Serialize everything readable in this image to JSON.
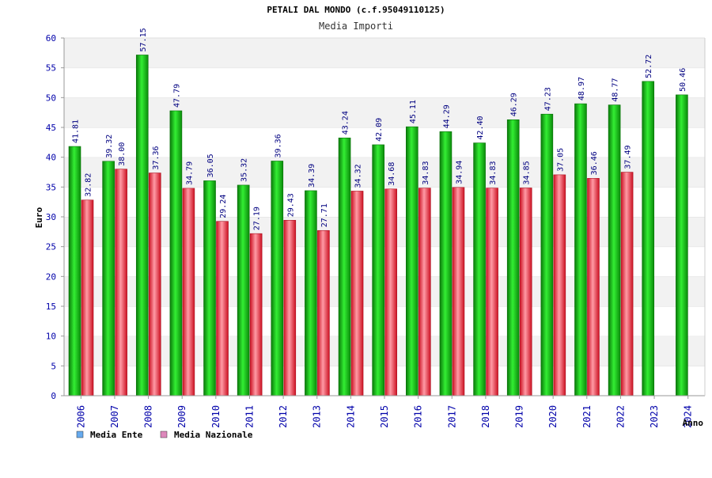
{
  "chart_data": {
    "type": "bar",
    "title": "PETALI DAL MONDO (c.f.95049110125)",
    "subtitle": "Media Importi",
    "ylabel": "Euro",
    "xlabel": "Anno",
    "ylim": [
      0,
      60
    ],
    "yticks": [
      0,
      5,
      10,
      15,
      20,
      25,
      30,
      35,
      40,
      45,
      50,
      55,
      60
    ],
    "grid": "horizontal bands",
    "legend_position": "bottom-left",
    "categories": [
      "2006",
      "2007",
      "2008",
      "2009",
      "2010",
      "2011",
      "2012",
      "2013",
      "2014",
      "2015",
      "2016",
      "2017",
      "2018",
      "2019",
      "2020",
      "2021",
      "2022",
      "2023",
      "2024"
    ],
    "series": [
      {
        "name": "Media Ente",
        "color": "#11bb11",
        "legend_color": "#66aaee",
        "values": [
          41.81,
          39.32,
          57.15,
          47.79,
          36.05,
          35.32,
          39.36,
          34.39,
          43.24,
          42.09,
          45.11,
          44.29,
          42.4,
          46.29,
          47.23,
          48.97,
          48.77,
          52.72,
          50.46
        ],
        "labels": [
          "41.81",
          "39.32",
          "57.15",
          "47.79",
          "36.05",
          "35.32",
          "39.36",
          "34.39",
          "43.24",
          "42.09",
          "45.11",
          "44.29",
          "42.40",
          "46.29",
          "47.23",
          "48.97",
          "48.77",
          "52.72",
          "50.46"
        ]
      },
      {
        "name": "Media Nazionale",
        "color": "#ee3344",
        "legend_color": "#dd88bb",
        "values": [
          32.82,
          38.0,
          37.36,
          34.79,
          29.24,
          27.19,
          29.43,
          27.71,
          34.32,
          34.68,
          34.83,
          34.94,
          34.83,
          34.85,
          37.05,
          36.46,
          37.49,
          null,
          null
        ],
        "labels": [
          "32.82",
          "38.00",
          "37.36",
          "34.79",
          "29.24",
          "27.19",
          "29.43",
          "27.71",
          "34.32",
          "34.68",
          "34.83",
          "34.94",
          "34.83",
          "34.85",
          "37.05",
          "36.46",
          "37.49",
          null,
          null
        ]
      }
    ]
  }
}
